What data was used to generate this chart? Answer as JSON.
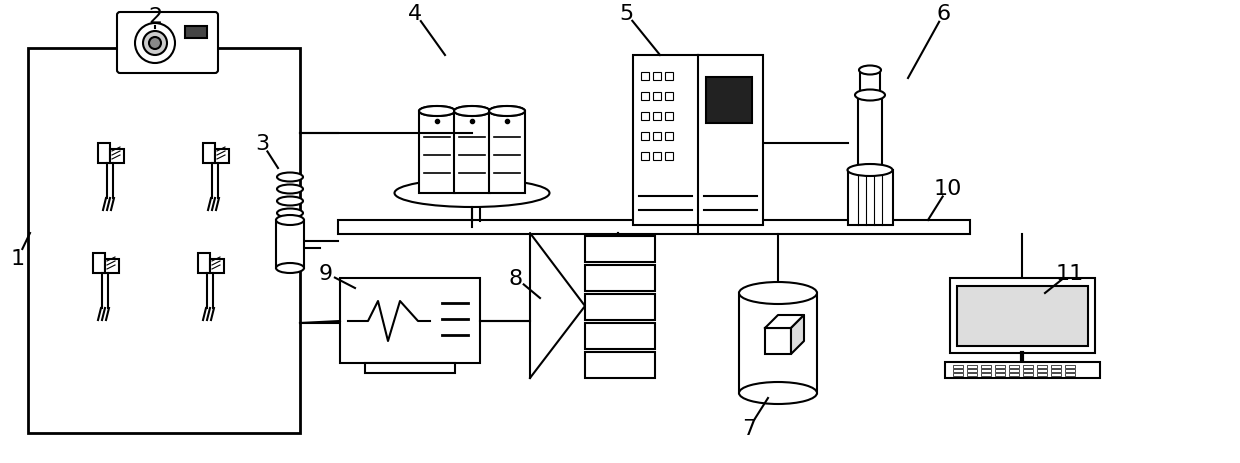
{
  "bg_color": "#ffffff",
  "lc": "#000000",
  "lw": 1.5,
  "fig_w": 12.4,
  "fig_h": 4.64,
  "dpi": 100
}
